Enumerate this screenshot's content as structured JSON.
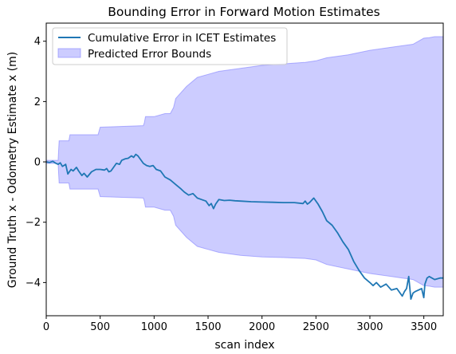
{
  "chart_data": {
    "type": "line",
    "title": "Bounding Error in Forward Motion Estimates",
    "xlabel": "scan index",
    "ylabel": "Ground Truth x - Odometry Estimate x (m)",
    "xlim": [
      0,
      3680
    ],
    "ylim": [
      -5.1,
      4.6
    ],
    "xticks": [
      0,
      500,
      1000,
      1500,
      2000,
      2500,
      3000,
      3500
    ],
    "yticks": [
      -4,
      -2,
      0,
      2,
      4
    ],
    "xtick_labels": [
      "0",
      "500",
      "1000",
      "1500",
      "2000",
      "2500",
      "3000",
      "3500"
    ],
    "ytick_labels": [
      "−4",
      "−2",
      "0",
      "2",
      "4"
    ],
    "grid": false,
    "legend_position": "top-left",
    "series": [
      {
        "name": "Cumulative Error in ICET Estimates",
        "kind": "line",
        "color": "#1f77b4",
        "x": [
          0,
          30,
          60,
          90,
          110,
          130,
          150,
          180,
          200,
          230,
          250,
          280,
          300,
          330,
          350,
          380,
          420,
          460,
          500,
          540,
          560,
          580,
          600,
          620,
          650,
          680,
          700,
          730,
          760,
          790,
          810,
          830,
          850,
          880,
          900,
          930,
          960,
          990,
          1020,
          1060,
          1100,
          1150,
          1200,
          1250,
          1280,
          1320,
          1360,
          1400,
          1440,
          1480,
          1510,
          1530,
          1550,
          1570,
          1600,
          1650,
          1700,
          1750,
          1800,
          1900,
          2000,
          2100,
          2200,
          2300,
          2380,
          2400,
          2420,
          2440,
          2480,
          2520,
          2560,
          2600,
          2650,
          2700,
          2750,
          2800,
          2850,
          2900,
          2950,
          3000,
          3030,
          3060,
          3100,
          3150,
          3200,
          3250,
          3300,
          3320,
          3340,
          3360,
          3380,
          3400,
          3420,
          3450,
          3480,
          3500,
          3510,
          3530,
          3550,
          3600,
          3650,
          3680
        ],
        "y": [
          0.0,
          -0.02,
          0.02,
          -0.05,
          -0.08,
          -0.03,
          -0.15,
          -0.08,
          -0.4,
          -0.25,
          -0.3,
          -0.18,
          -0.3,
          -0.45,
          -0.38,
          -0.5,
          -0.33,
          -0.25,
          -0.25,
          -0.27,
          -0.22,
          -0.33,
          -0.3,
          -0.2,
          -0.05,
          -0.08,
          0.05,
          0.1,
          0.12,
          0.2,
          0.15,
          0.25,
          0.2,
          0.05,
          -0.05,
          -0.12,
          -0.15,
          -0.12,
          -0.25,
          -0.3,
          -0.5,
          -0.6,
          -0.75,
          -0.9,
          -1.0,
          -1.1,
          -1.05,
          -1.2,
          -1.25,
          -1.3,
          -1.45,
          -1.38,
          -1.55,
          -1.4,
          -1.25,
          -1.28,
          -1.27,
          -1.29,
          -1.3,
          -1.32,
          -1.33,
          -1.34,
          -1.35,
          -1.35,
          -1.38,
          -1.3,
          -1.4,
          -1.35,
          -1.2,
          -1.4,
          -1.65,
          -1.95,
          -2.1,
          -2.35,
          -2.65,
          -2.9,
          -3.3,
          -3.6,
          -3.85,
          -4.0,
          -4.1,
          -4.0,
          -4.15,
          -4.05,
          -4.25,
          -4.2,
          -4.45,
          -4.3,
          -4.2,
          -3.8,
          -4.55,
          -4.35,
          -4.3,
          -4.25,
          -4.2,
          -4.5,
          -4.05,
          -3.85,
          -3.8,
          -3.9,
          -3.85,
          -3.85
        ]
      },
      {
        "name": "Predicted Error Bounds",
        "kind": "band",
        "color": "#8080ff",
        "x": [
          0,
          110,
          120,
          210,
          220,
          480,
          500,
          900,
          910,
          920,
          1000,
          1100,
          1150,
          1180,
          1200,
          1300,
          1400,
          1500,
          1600,
          1800,
          2000,
          2200,
          2400,
          2500,
          2600,
          2800,
          3000,
          3200,
          3300,
          3400,
          3450,
          3500,
          3550,
          3600,
          3680
        ],
        "upper": [
          0.05,
          0.05,
          0.7,
          0.7,
          0.9,
          0.9,
          1.15,
          1.2,
          1.3,
          1.5,
          1.5,
          1.6,
          1.6,
          1.8,
          2.1,
          2.5,
          2.8,
          2.9,
          3.0,
          3.1,
          3.2,
          3.25,
          3.3,
          3.35,
          3.45,
          3.55,
          3.7,
          3.8,
          3.85,
          3.9,
          4.0,
          4.1,
          4.12,
          4.15,
          4.15
        ],
        "lower": [
          -0.05,
          -0.05,
          -0.7,
          -0.7,
          -0.9,
          -0.9,
          -1.15,
          -1.2,
          -1.3,
          -1.5,
          -1.5,
          -1.6,
          -1.6,
          -1.8,
          -2.1,
          -2.5,
          -2.8,
          -2.9,
          -3.0,
          -3.1,
          -3.15,
          -3.17,
          -3.2,
          -3.25,
          -3.4,
          -3.55,
          -3.7,
          -3.8,
          -3.85,
          -3.9,
          -4.0,
          -4.1,
          -4.12,
          -4.15,
          -4.15
        ]
      }
    ]
  }
}
